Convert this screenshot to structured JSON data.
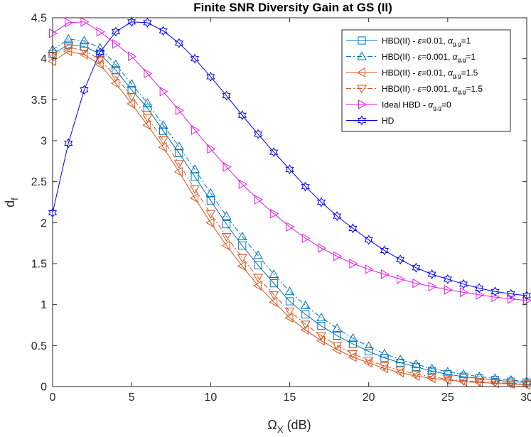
{
  "chart_data": {
    "type": "line",
    "title": "Finite SNR Diversity Gain at GS (II)",
    "xlabel": {
      "main": "Ω",
      "sub": "X",
      "rest": " (dB)"
    },
    "ylabel": {
      "main": "d",
      "sub": "f"
    },
    "xlim": [
      0,
      30
    ],
    "ylim": [
      0,
      4.5
    ],
    "xticks": [
      0,
      5,
      10,
      15,
      20,
      25,
      30
    ],
    "xtick_labels": [
      "0",
      "5",
      "10",
      "15",
      "20",
      "25",
      "30"
    ],
    "yticks": [
      0,
      0.5,
      1,
      1.5,
      2,
      2.5,
      3,
      3.5,
      4,
      4.5
    ],
    "ytick_labels": [
      "0",
      "0.5",
      "1",
      "1.5",
      "2",
      "2.5",
      "3",
      "3.5",
      "4",
      "4.5"
    ],
    "grid": false,
    "legend_position": "top-right",
    "x": [
      0,
      1,
      2,
      3,
      4,
      5,
      6,
      7,
      8,
      9,
      10,
      11,
      12,
      13,
      14,
      15,
      16,
      17,
      18,
      19,
      20,
      21,
      22,
      23,
      24,
      25,
      26,
      27,
      28,
      29,
      30
    ],
    "series": [
      {
        "name": "HBD(II) - ε=0.01, α_{g,g}=1",
        "legend_parts": [
          {
            "t": "HBD(II) - "
          },
          {
            "t": "ε",
            "it": true
          },
          {
            "t": "=0.01, "
          },
          {
            "t": "α",
            "it": true
          },
          {
            "t": "g,g",
            "sub": true
          },
          {
            "t": "=1"
          }
        ],
        "color": "#0072BD",
        "linestyle": "solid",
        "marker": "square",
        "values": [
          4.06,
          4.17,
          4.15,
          4.06,
          3.86,
          3.62,
          3.4,
          3.12,
          2.85,
          2.56,
          2.27,
          1.98,
          1.72,
          1.48,
          1.26,
          1.04,
          0.88,
          0.74,
          0.62,
          0.52,
          0.43,
          0.35,
          0.29,
          0.24,
          0.19,
          0.15,
          0.12,
          0.1,
          0.08,
          0.06,
          0.05
        ]
      },
      {
        "name": "HBD(II) - ε=0.001, α_{g,g}=1",
        "legend_parts": [
          {
            "t": "HBD(II) - "
          },
          {
            "t": "ε",
            "it": true
          },
          {
            "t": "=0.001, "
          },
          {
            "t": "α",
            "it": true
          },
          {
            "t": "g,g",
            "sub": true
          },
          {
            "t": "=1"
          }
        ],
        "color": "#0072BD",
        "linestyle": "dashdot",
        "marker": "triangle-up",
        "values": [
          4.11,
          4.24,
          4.22,
          4.13,
          3.93,
          3.69,
          3.46,
          3.19,
          2.93,
          2.65,
          2.36,
          2.08,
          1.83,
          1.6,
          1.37,
          1.16,
          0.99,
          0.84,
          0.71,
          0.59,
          0.49,
          0.4,
          0.33,
          0.27,
          0.22,
          0.18,
          0.15,
          0.12,
          0.1,
          0.08,
          0.06
        ]
      },
      {
        "name": "HBD(II) - ε=0.01, α_{g,g}=1.5",
        "legend_parts": [
          {
            "t": "HBD(II) - "
          },
          {
            "t": "ε",
            "it": true
          },
          {
            "t": "=0.01, "
          },
          {
            "t": "α",
            "it": true
          },
          {
            "t": "g,g",
            "sub": true
          },
          {
            "t": "=1.5"
          }
        ],
        "color": "#D95319",
        "linestyle": "solid",
        "marker": "triangle-left",
        "values": [
          3.97,
          4.09,
          4.05,
          3.93,
          3.7,
          3.45,
          3.19,
          2.92,
          2.62,
          2.3,
          2.0,
          1.72,
          1.47,
          1.23,
          1.03,
          0.84,
          0.69,
          0.56,
          0.45,
          0.36,
          0.29,
          0.22,
          0.17,
          0.13,
          0.1,
          0.08,
          0.06,
          0.05,
          0.04,
          0.03,
          0.02
        ]
      },
      {
        "name": "HBD(II) - ε=0.001, α_{g,g}=1.5",
        "legend_parts": [
          {
            "t": "HBD(II) - "
          },
          {
            "t": "ε",
            "it": true
          },
          {
            "t": "=0.001, "
          },
          {
            "t": "α",
            "it": true
          },
          {
            "t": "g,g",
            "sub": true
          },
          {
            "t": "=1.5"
          }
        ],
        "color": "#D95319",
        "linestyle": "dashdot",
        "marker": "triangle-down",
        "values": [
          4.04,
          4.14,
          4.1,
          3.99,
          3.78,
          3.54,
          3.28,
          3.01,
          2.72,
          2.41,
          2.11,
          1.83,
          1.57,
          1.33,
          1.12,
          0.92,
          0.76,
          0.62,
          0.5,
          0.4,
          0.32,
          0.25,
          0.2,
          0.15,
          0.12,
          0.09,
          0.07,
          0.06,
          0.05,
          0.04,
          0.03
        ]
      },
      {
        "name": "Ideal HBD - α_{g,g}=0",
        "legend_parts": [
          {
            "t": "Ideal HBD - "
          },
          {
            "t": "α",
            "it": true
          },
          {
            "t": "g,g",
            "sub": true
          },
          {
            "t": "=0"
          }
        ],
        "color": "#E61AE6",
        "linestyle": "solid",
        "marker": "triangle-right",
        "values": [
          4.31,
          4.44,
          4.45,
          4.33,
          4.18,
          4.03,
          3.82,
          3.6,
          3.37,
          3.13,
          2.9,
          2.68,
          2.47,
          2.28,
          2.11,
          1.95,
          1.81,
          1.69,
          1.59,
          1.5,
          1.43,
          1.37,
          1.31,
          1.26,
          1.22,
          1.18,
          1.15,
          1.12,
          1.09,
          1.07,
          1.05
        ]
      },
      {
        "name": "HD",
        "legend_parts": [
          {
            "t": "HD"
          }
        ],
        "color": "#0000FF",
        "linestyle": "solid",
        "marker": "hexagram",
        "values": [
          2.12,
          2.97,
          3.62,
          4.08,
          4.33,
          4.45,
          4.44,
          4.34,
          4.19,
          4.0,
          3.78,
          3.55,
          3.31,
          3.08,
          2.86,
          2.65,
          2.44,
          2.25,
          2.08,
          1.93,
          1.79,
          1.66,
          1.55,
          1.45,
          1.37,
          1.31,
          1.25,
          1.2,
          1.16,
          1.13,
          1.11
        ]
      }
    ]
  }
}
